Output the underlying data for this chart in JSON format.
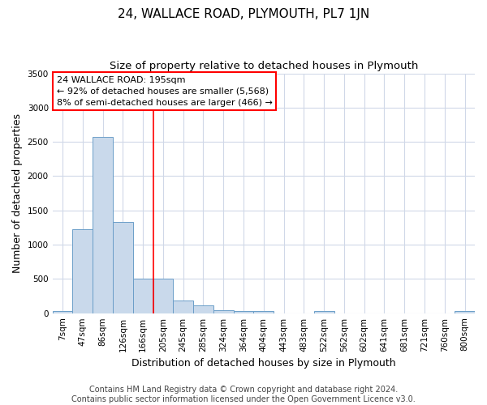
{
  "title": "24, WALLACE ROAD, PLYMOUTH, PL7 1JN",
  "subtitle": "Size of property relative to detached houses in Plymouth",
  "xlabel": "Distribution of detached houses by size in Plymouth",
  "ylabel": "Number of detached properties",
  "bar_labels": [
    "7sqm",
    "47sqm",
    "86sqm",
    "126sqm",
    "166sqm",
    "205sqm",
    "245sqm",
    "285sqm",
    "324sqm",
    "364sqm",
    "404sqm",
    "443sqm",
    "483sqm",
    "522sqm",
    "562sqm",
    "602sqm",
    "641sqm",
    "681sqm",
    "721sqm",
    "760sqm",
    "800sqm"
  ],
  "bar_values": [
    30,
    1230,
    2570,
    1330,
    500,
    500,
    190,
    110,
    45,
    30,
    30,
    0,
    0,
    30,
    0,
    0,
    0,
    0,
    0,
    0,
    30
  ],
  "bar_color": "#c9d9eb",
  "bar_edge_color": "#6b9ec8",
  "vline_x": 5,
  "vline_color": "red",
  "annotation_line1": "24 WALLACE ROAD: 195sqm",
  "annotation_line2": "← 92% of detached houses are smaller (5,568)",
  "annotation_line3": "8% of semi-detached houses are larger (466) →",
  "annotation_box_color": "white",
  "annotation_box_edgecolor": "red",
  "ylim": [
    0,
    3500
  ],
  "yticks": [
    0,
    500,
    1000,
    1500,
    2000,
    2500,
    3000,
    3500
  ],
  "fig_bg_color": "#ffffff",
  "plot_bg_color": "#ffffff",
  "grid_color": "#d0d8e8",
  "footer": "Contains HM Land Registry data © Crown copyright and database right 2024.\nContains public sector information licensed under the Open Government Licence v3.0.",
  "title_fontsize": 11,
  "subtitle_fontsize": 9.5,
  "axis_label_fontsize": 9,
  "tick_fontsize": 7.5,
  "footer_fontsize": 7
}
